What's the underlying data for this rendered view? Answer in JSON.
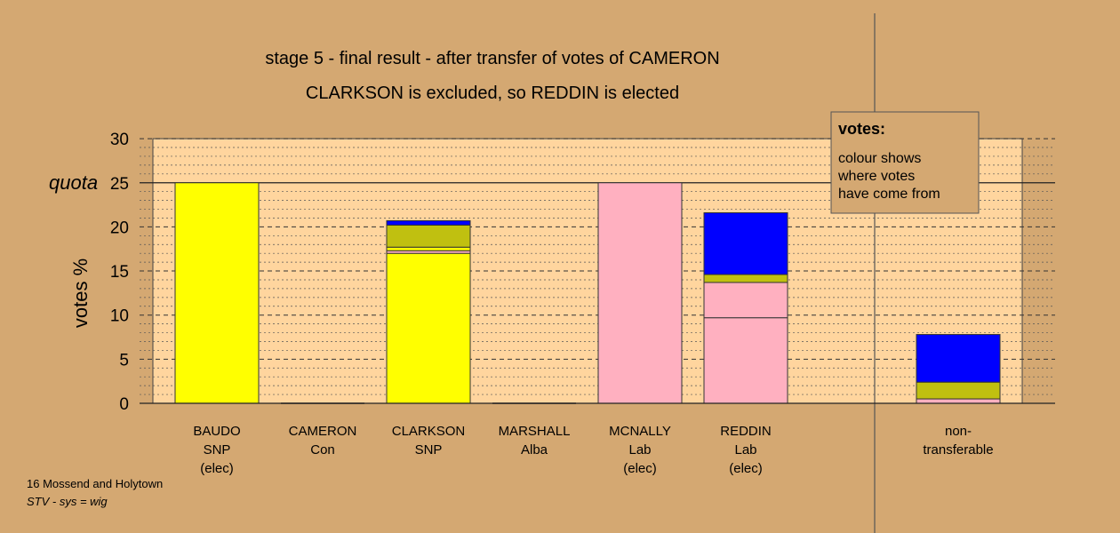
{
  "chart_data": {
    "type": "bar",
    "stacked": true,
    "title": "stage 5 - final result - after transfer of votes of CAMERON",
    "subtitle": "CLARKSON is excluded, so REDDIN is elected",
    "ylabel": "votes %",
    "ylim": [
      0,
      30
    ],
    "yticks": [
      0,
      5,
      10,
      15,
      20,
      25,
      30
    ],
    "quota_label": "quota",
    "quota": 25,
    "grid": true,
    "colors": {
      "background": "#d4a872",
      "plot_area": "#ffd59e",
      "yellow": "#ffff00",
      "olive": "#c0c010",
      "blue": "#0000ff",
      "pink": "#ffb0c0"
    },
    "candidates": [
      {
        "lines": [
          "BAUDO",
          "SNP",
          "(elec)"
        ],
        "segments": [
          {
            "value": 25.0,
            "color": "#ffff00"
          }
        ]
      },
      {
        "lines": [
          "CAMERON",
          "Con"
        ],
        "segments": []
      },
      {
        "lines": [
          "CLARKSON",
          "SNP"
        ],
        "segments": [
          {
            "value": 17.0,
            "color": "#ffff00"
          },
          {
            "value": 0.3,
            "color": "#ffb0c0"
          },
          {
            "value": 0.4,
            "color": "#ffff00"
          },
          {
            "value": 2.5,
            "color": "#c0c010"
          },
          {
            "value": 0.5,
            "color": "#0000ff"
          }
        ]
      },
      {
        "lines": [
          "MARSHALL",
          "Alba"
        ],
        "segments": []
      },
      {
        "lines": [
          "MCNALLY",
          "Lab",
          "(elec)"
        ],
        "segments": [
          {
            "value": 25.0,
            "color": "#ffb0c0"
          }
        ]
      },
      {
        "lines": [
          "REDDIN",
          "Lab",
          "(elec)"
        ],
        "segments": [
          {
            "value": 9.7,
            "color": "#ffb0c0"
          },
          {
            "value": 4.0,
            "color": "#ffb0c0"
          },
          {
            "value": 0.9,
            "color": "#c0c010"
          },
          {
            "value": 7.0,
            "color": "#0000ff"
          }
        ]
      }
    ],
    "nontransferable": {
      "lines": [
        "non-",
        "transferable"
      ],
      "segments": [
        {
          "value": 0.5,
          "color": "#ffb0c0"
        },
        {
          "value": 1.9,
          "color": "#c0c010"
        },
        {
          "value": 5.4,
          "color": "#0000ff"
        }
      ]
    },
    "legend": {
      "heading": "votes:",
      "lines": [
        "colour shows",
        "where votes",
        "have come from"
      ]
    }
  },
  "footer": {
    "line1": "16 Mossend and Holytown",
    "line2": "STV - sys = wig"
  }
}
